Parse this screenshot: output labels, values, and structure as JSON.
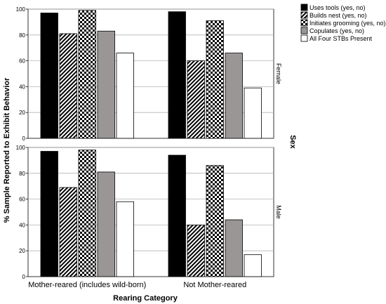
{
  "chart_data": {
    "type": "bar",
    "xlabel": "Rearing Category",
    "ylabel": "% Sample Reported to Exhibit Behavior",
    "facet_label": "Sex",
    "ylim": [
      0,
      100
    ],
    "yticks": [
      "0",
      "20",
      "40",
      "60",
      "80",
      "100"
    ],
    "categories": [
      "Mother-reared (includes wild-born)",
      "Not Mother-reared"
    ],
    "legend_position": "top-right",
    "series_styles": [
      {
        "fill": "#000000",
        "pattern": "none"
      },
      {
        "fill": "#ffffff",
        "pattern": "diagonal-stripes"
      },
      {
        "fill": "#ffffff",
        "pattern": "checkerboard"
      },
      {
        "fill": "#9a9696",
        "pattern": "none"
      },
      {
        "fill": "#ffffff",
        "pattern": "none"
      }
    ],
    "panels": [
      {
        "label": "Female",
        "series": [
          {
            "name": "Uses tools (yes, no)",
            "values": [
              97,
              98
            ]
          },
          {
            "name": "Builds nest (yes, no)",
            "values": [
              81,
              60
            ]
          },
          {
            "name": "Initiates grooming (yes, no)",
            "values": [
              99,
              91
            ]
          },
          {
            "name": "Copulates (yes, no)",
            "values": [
              83,
              66
            ]
          },
          {
            "name": "All Four STBs Present",
            "values": [
              66,
              39
            ]
          }
        ]
      },
      {
        "label": "Male",
        "series": [
          {
            "name": "Uses tools (yes, no)",
            "values": [
              97,
              94
            ]
          },
          {
            "name": "Builds nest (yes, no)",
            "values": [
              69,
              40
            ]
          },
          {
            "name": "Initiates grooming (yes, no)",
            "values": [
              98,
              86
            ]
          },
          {
            "name": "Copulates (yes, no)",
            "values": [
              81,
              44
            ]
          },
          {
            "name": "All Four STBs Present",
            "values": [
              58,
              17
            ]
          }
        ]
      }
    ]
  }
}
